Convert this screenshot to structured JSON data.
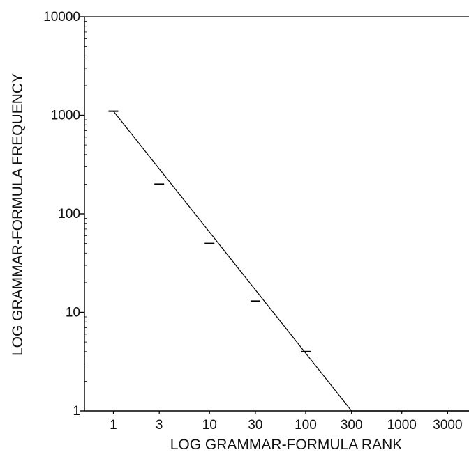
{
  "chart_data": {
    "type": "line",
    "xlabel": "LOG GRAMMAR-FORMULA RANK",
    "ylabel": "LOG GRAMMAR-FORMULA FREQUENCY",
    "x_scale": "log",
    "y_scale": "log",
    "xlim": [
      0.5,
      5000
    ],
    "ylim": [
      1,
      10000
    ],
    "x_ticks": [
      1,
      3,
      10,
      30,
      100,
      300,
      1000,
      3000
    ],
    "x_tick_labels": [
      "1",
      "3",
      "10",
      "30",
      "100",
      "300",
      "1000",
      "3000"
    ],
    "y_ticks": [
      1,
      10,
      100,
      1000,
      10000
    ],
    "y_tick_labels": [
      "1",
      "10",
      "100",
      "1000",
      "10000"
    ],
    "grid": false,
    "series": [
      {
        "line_points": {
          "x": [
            1,
            300,
            5000
          ],
          "y": [
            1100,
            1,
            1
          ]
        },
        "markers": {
          "x": [
            1,
            3,
            10,
            30,
            100
          ],
          "y": [
            1100,
            200,
            50,
            13,
            4
          ]
        },
        "color": "#000000"
      }
    ]
  }
}
